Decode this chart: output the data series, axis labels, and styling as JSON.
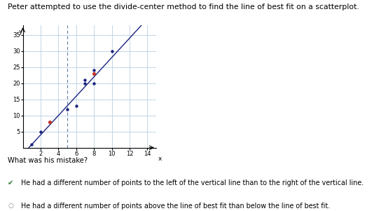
{
  "title": "Peter attempted to use the divide-center method to find the line of best fit on a scatterplot.",
  "blue_points": [
    [
      1,
      1
    ],
    [
      2,
      5
    ],
    [
      5,
      12
    ],
    [
      6,
      13
    ],
    [
      7,
      20
    ],
    [
      7,
      21
    ],
    [
      8,
      20
    ],
    [
      8,
      24
    ],
    [
      10,
      30
    ]
  ],
  "red_points": [
    [
      3,
      8
    ],
    [
      8,
      23
    ]
  ],
  "vertical_line_x": 5,
  "line_slope": 3.0,
  "line_intercept": -2.0,
  "xlim": [
    0,
    15
  ],
  "ylim": [
    0,
    38
  ],
  "xticks": [
    2,
    4,
    6,
    8,
    10,
    12,
    14
  ],
  "yticks": [
    5,
    10,
    15,
    20,
    25,
    30,
    35
  ],
  "xlabel": "x",
  "ylabel": "y",
  "blue_color": "#1a237e",
  "red_color": "#c0392b",
  "line_color": "#1a237e",
  "vline_color": "#5b7fa6",
  "grid_color": "#b8cfe0",
  "answer1": "He had a different number of points to the left of the vertical line than to the right of the vertical line.",
  "answer2": "He had a different number of points above the line of best fit than below the line of best fit.",
  "checkmark_color": "#2e7d32",
  "bg_color": "#ffffff",
  "title_fontsize": 7.8,
  "tick_fontsize": 6.0,
  "answer_fontsize": 7.2
}
